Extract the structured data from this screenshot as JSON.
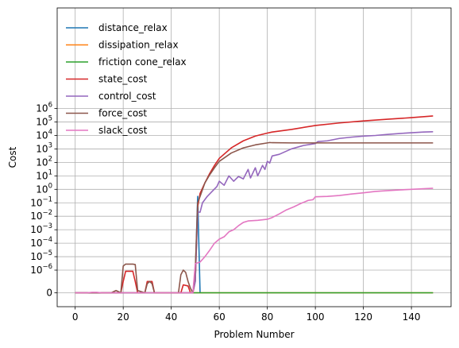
{
  "chart_data": {
    "type": "line",
    "xlabel": "Problem Number",
    "ylabel": "Cost",
    "xlim": [
      -7.5,
      156.5
    ],
    "ylim_description": "symlog scale, linear near zero (0 to 1e-6), log decades from 1e-6 to 1e6",
    "x_ticks": [
      0,
      20,
      40,
      60,
      80,
      100,
      120,
      140
    ],
    "y_ticks": [
      {
        "value": 0,
        "label": "0"
      },
      {
        "value": 1e-06,
        "label": "10",
        "exp": "−6"
      },
      {
        "value": 1e-05,
        "label": "10",
        "exp": "−5"
      },
      {
        "value": 0.0001,
        "label": "10",
        "exp": "−4"
      },
      {
        "value": 0.001,
        "label": "10",
        "exp": "−3"
      },
      {
        "value": 0.01,
        "label": "10",
        "exp": "−2"
      },
      {
        "value": 0.1,
        "label": "10",
        "exp": "−1"
      },
      {
        "value": 1,
        "label": "10",
        "exp": "0"
      },
      {
        "value": 10,
        "label": "10",
        "exp": "1"
      },
      {
        "value": 100,
        "label": "10",
        "exp": "2"
      },
      {
        "value": 1000,
        "label": "10",
        "exp": "3"
      },
      {
        "value": 10000,
        "label": "10",
        "exp": "4"
      },
      {
        "value": 100000,
        "label": "10",
        "exp": "5"
      },
      {
        "value": 1000000,
        "label": "10",
        "exp": "6"
      }
    ],
    "grid": true,
    "legend_position": "top-left",
    "series": [
      {
        "name": "distance_relax",
        "color": "#1f77b4",
        "points": [
          [
            0,
            0
          ],
          [
            49,
            0
          ],
          [
            50,
            8e-07
          ],
          [
            51,
            0.3
          ],
          [
            52,
            0
          ]
        ]
      },
      {
        "name": "dissipation_relax",
        "color": "#ff7f0e",
        "points": [
          [
            0,
            0
          ],
          [
            149,
            0
          ]
        ]
      },
      {
        "name": "friction cone_relax",
        "color": "#2ca02c",
        "points": [
          [
            0,
            0
          ],
          [
            149,
            0
          ]
        ]
      },
      {
        "name": "state_cost",
        "color": "#d62728",
        "points": [
          [
            0,
            0
          ],
          [
            19,
            0
          ],
          [
            20,
            5e-07
          ],
          [
            21,
            9.5e-07
          ],
          [
            24,
            9.5e-07
          ],
          [
            25,
            5e-07
          ],
          [
            26,
            0
          ],
          [
            29,
            0
          ],
          [
            30,
            5e-07
          ],
          [
            32,
            5e-07
          ],
          [
            33,
            0
          ],
          [
            44,
            0
          ],
          [
            45,
            3.5e-07
          ],
          [
            47,
            3e-07
          ],
          [
            48,
            0
          ],
          [
            49,
            0
          ],
          [
            50,
            5e-07
          ],
          [
            51,
            0.05
          ],
          [
            52,
            0.5
          ],
          [
            54,
            3
          ],
          [
            56,
            15
          ],
          [
            58,
            60
          ],
          [
            60,
            200
          ],
          [
            65,
            1200
          ],
          [
            70,
            4000
          ],
          [
            75,
            9000
          ],
          [
            80,
            15000
          ],
          [
            82,
            18000
          ],
          [
            90,
            28000
          ],
          [
            100,
            55000
          ],
          [
            110,
            85000
          ],
          [
            120,
            120000
          ],
          [
            130,
            160000
          ],
          [
            140,
            210000
          ],
          [
            149,
            280000
          ]
        ]
      },
      {
        "name": "control_cost",
        "color": "#9467bd",
        "points": [
          [
            0,
            0
          ],
          [
            49,
            0
          ],
          [
            50,
            5e-07
          ],
          [
            51,
            0.02
          ],
          [
            52,
            0.02
          ],
          [
            53,
            0.1
          ],
          [
            55,
            0.3
          ],
          [
            57,
            0.7
          ],
          [
            59,
            1.6
          ],
          [
            60,
            4
          ],
          [
            62,
            2
          ],
          [
            64,
            10
          ],
          [
            66,
            4
          ],
          [
            68,
            9
          ],
          [
            70,
            6
          ],
          [
            72,
            30
          ],
          [
            73,
            7
          ],
          [
            75,
            40
          ],
          [
            76,
            10
          ],
          [
            78,
            60
          ],
          [
            79,
            30
          ],
          [
            80,
            120
          ],
          [
            81,
            90
          ],
          [
            82,
            300
          ],
          [
            85,
            400
          ],
          [
            90,
            1000
          ],
          [
            95,
            1800
          ],
          [
            100,
            2500
          ],
          [
            101,
            3500
          ],
          [
            105,
            4000
          ],
          [
            110,
            6000
          ],
          [
            115,
            7500
          ],
          [
            120,
            9000
          ],
          [
            125,
            10000
          ],
          [
            130,
            12000
          ],
          [
            135,
            14000
          ],
          [
            140,
            16000
          ],
          [
            145,
            18000
          ],
          [
            149,
            19000
          ]
        ]
      },
      {
        "name": "force_cost",
        "color": "#8c564b",
        "points": [
          [
            0,
            0
          ],
          [
            15,
            0
          ],
          [
            17,
            1e-07
          ],
          [
            19,
            0
          ],
          [
            20,
            2e-06
          ],
          [
            21,
            2.8e-06
          ],
          [
            22,
            2.8e-06
          ],
          [
            23,
            2.8e-06
          ],
          [
            24,
            2.8e-06
          ],
          [
            25,
            2.6e-06
          ],
          [
            26,
            1e-07
          ],
          [
            29,
            0
          ],
          [
            30,
            4e-07
          ],
          [
            31,
            5e-07
          ],
          [
            32,
            4e-07
          ],
          [
            33,
            0
          ],
          [
            43,
            0
          ],
          [
            44,
            8e-07
          ],
          [
            45,
            1e-06
          ],
          [
            46,
            9e-07
          ],
          [
            47,
            5e-07
          ],
          [
            48,
            2e-07
          ],
          [
            49,
            0
          ],
          [
            50,
            1e-06
          ],
          [
            51,
            0.1
          ],
          [
            52,
            0.3
          ],
          [
            54,
            3
          ],
          [
            56,
            12
          ],
          [
            58,
            40
          ],
          [
            60,
            120
          ],
          [
            65,
            500
          ],
          [
            70,
            1200
          ],
          [
            75,
            2000
          ],
          [
            80,
            2800
          ],
          [
            81,
            3000
          ],
          [
            82,
            2900
          ],
          [
            90,
            2800
          ],
          [
            100,
            2800
          ],
          [
            110,
            2800
          ],
          [
            120,
            2800
          ],
          [
            130,
            2800
          ],
          [
            140,
            2800
          ],
          [
            149,
            2800
          ]
        ]
      },
      {
        "name": "slack_cost",
        "color": "#e377c2",
        "points": [
          [
            0,
            0
          ],
          [
            5,
            0
          ],
          [
            7,
            2e-08
          ],
          [
            9,
            2e-08
          ],
          [
            11,
            0
          ],
          [
            49,
            0
          ],
          [
            50,
            3e-06
          ],
          [
            52,
            4e-06
          ],
          [
            54,
            1e-05
          ],
          [
            56,
            3e-05
          ],
          [
            58,
            0.0001
          ],
          [
            60,
            0.0002
          ],
          [
            62,
            0.0003
          ],
          [
            64,
            0.0007
          ],
          [
            66,
            0.001
          ],
          [
            68,
            0.002
          ],
          [
            70,
            0.0035
          ],
          [
            72,
            0.0045
          ],
          [
            76,
            0.005
          ],
          [
            80,
            0.006
          ],
          [
            82,
            0.008
          ],
          [
            85,
            0.015
          ],
          [
            88,
            0.03
          ],
          [
            91,
            0.05
          ],
          [
            94,
            0.09
          ],
          [
            97,
            0.15
          ],
          [
            99,
            0.17
          ],
          [
            100,
            0.28
          ],
          [
            105,
            0.3
          ],
          [
            110,
            0.35
          ],
          [
            115,
            0.45
          ],
          [
            120,
            0.55
          ],
          [
            125,
            0.7
          ],
          [
            130,
            0.8
          ],
          [
            135,
            0.9
          ],
          [
            140,
            1.0
          ],
          [
            145,
            1.1
          ],
          [
            149,
            1.2
          ]
        ]
      }
    ]
  }
}
